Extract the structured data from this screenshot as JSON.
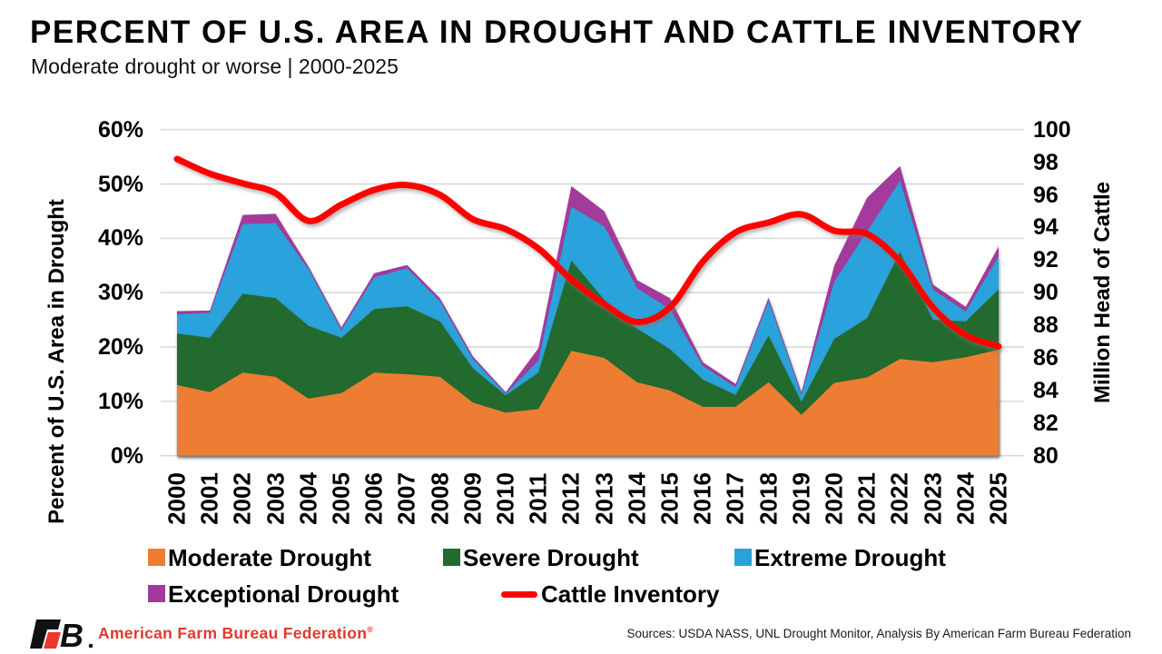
{
  "chart_data": {
    "type": "area",
    "stacked": true,
    "title": "PERCENT OF U.S. AREA IN DROUGHT AND CATTLE INVENTORY",
    "subtitle": "Moderate drought or worse | 2000-2025",
    "grid": "horizontal, light gray",
    "legend_position": "bottom",
    "x": [
      2000,
      2001,
      2002,
      2003,
      2004,
      2005,
      2006,
      2007,
      2008,
      2009,
      2010,
      2011,
      2012,
      2013,
      2014,
      2015,
      2016,
      2017,
      2018,
      2019,
      2020,
      2021,
      2022,
      2023,
      2024,
      2025
    ],
    "x_axis": {
      "labels": [
        "2000",
        "2001",
        "2002",
        "2003",
        "2004",
        "2005",
        "2006",
        "2007",
        "2008",
        "2009",
        "2010",
        "2011",
        "2012",
        "2013",
        "2014",
        "2015",
        "2016",
        "2017",
        "2018",
        "2019",
        "2020",
        "2021",
        "2022",
        "2023",
        "2024",
        "2025"
      ]
    },
    "left_axis": {
      "label": "Percent of U.S. Area in Drought",
      "range": [
        0,
        60
      ],
      "ticks": [
        "0%",
        "10%",
        "20%",
        "30%",
        "40%",
        "50%",
        "60%"
      ]
    },
    "right_axis": {
      "label": "Million Head of Cattle",
      "range": [
        80,
        100
      ],
      "ticks": [
        "80",
        "82",
        "84",
        "86",
        "88",
        "90",
        "92",
        "94",
        "96",
        "98",
        "100"
      ]
    },
    "series": [
      {
        "name": "Moderate Drought",
        "color": "#ED7D31",
        "values": [
          13.0,
          11.7,
          15.3,
          14.5,
          10.5,
          11.5,
          15.3,
          15.0,
          14.5,
          9.8,
          7.9,
          8.6,
          19.3,
          18.0,
          13.5,
          12.0,
          9.0,
          9.0,
          13.5,
          7.5,
          13.4,
          14.4,
          17.8,
          17.2,
          18.1,
          19.5
        ]
      },
      {
        "name": "Severe Drought",
        "color": "#206B2E",
        "values": [
          9.5,
          10.0,
          14.5,
          14.5,
          13.4,
          10.2,
          11.7,
          12.5,
          10.2,
          6.3,
          3.2,
          6.7,
          16.6,
          10.7,
          9.9,
          7.6,
          5.0,
          2.2,
          8.6,
          2.4,
          8.1,
          10.9,
          19.7,
          7.8,
          6.6,
          11.1
        ]
      },
      {
        "name": "Extreme Drought",
        "color": "#29A2DB",
        "values": [
          3.5,
          4.6,
          12.8,
          13.8,
          10.4,
          1.4,
          5.8,
          7.0,
          3.7,
          1.7,
          0.3,
          2.2,
          9.9,
          13.5,
          7.4,
          7.4,
          2.5,
          1.4,
          6.4,
          1.3,
          10.5,
          16.0,
          13.1,
          5.6,
          1.8,
          6.1
        ]
      },
      {
        "name": "Exceptional Drought",
        "color": "#A23A9C",
        "values": [
          0.6,
          0.4,
          1.7,
          1.7,
          0.5,
          0.5,
          0.8,
          0.6,
          0.6,
          0.5,
          0.3,
          2.3,
          3.8,
          2.8,
          1.5,
          2.0,
          0.7,
          0.6,
          0.6,
          0.5,
          3.0,
          6.2,
          2.7,
          0.9,
          0.9,
          1.8
        ]
      }
    ],
    "line_series": {
      "name": "Cattle Inventory",
      "color": "#FF0000",
      "axis": "right",
      "values": [
        98.2,
        97.3,
        96.7,
        96.1,
        94.4,
        95.4,
        96.3,
        96.6,
        96.0,
        94.5,
        93.9,
        92.7,
        90.8,
        89.3,
        88.2,
        89.1,
        91.9,
        93.7,
        94.3,
        94.8,
        93.8,
        93.6,
        91.9,
        89.1,
        87.4,
        86.7
      ]
    },
    "legend": [
      {
        "label": "Moderate Drought",
        "color": "#ED7D31",
        "marker": "square"
      },
      {
        "label": "Severe Drought",
        "color": "#206B2E",
        "marker": "square"
      },
      {
        "label": "Extreme Drought",
        "color": "#29A2DB",
        "marker": "square"
      },
      {
        "label": "Exceptional Drought",
        "color": "#A23A9C",
        "marker": "square"
      },
      {
        "label": "Cattle Inventory",
        "color": "#FF0000",
        "marker": "line"
      }
    ],
    "colors": {
      "grid": "#D9D9D9",
      "text": "#000000"
    }
  },
  "footer": {
    "brand": "American Farm Bureau Federation",
    "reg": "®",
    "sources": "Sources: USDA NASS, UNL Drought Monitor, Analysis By American Farm Bureau Federation"
  }
}
